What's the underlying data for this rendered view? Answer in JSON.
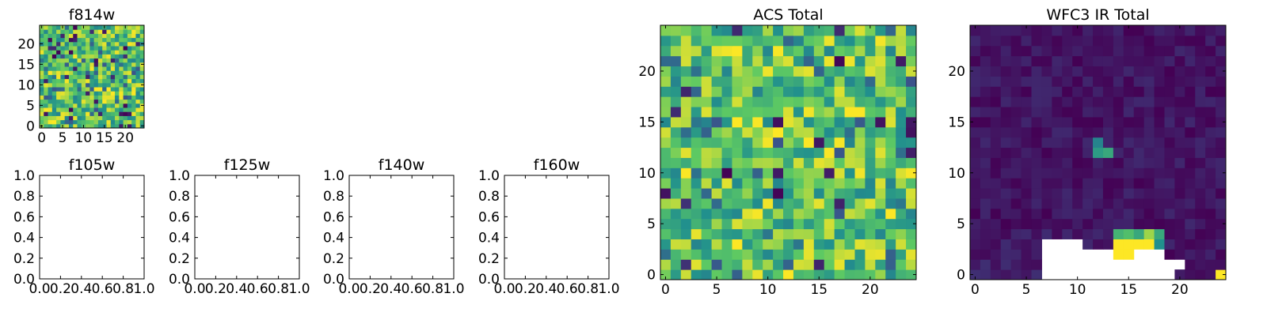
{
  "colormap": [
    "#440154",
    "#3b528b",
    "#21908d",
    "#5dc963",
    "#fde725"
  ],
  "chart_data": [
    {
      "type": "heatmap",
      "title": "f814w",
      "xticks": [
        0,
        5,
        10,
        15,
        20
      ],
      "yticks": [
        0,
        5,
        10,
        15,
        20
      ],
      "xlim": [
        -0.5,
        24.5
      ],
      "ylim": [
        -0.5,
        24.5
      ],
      "grid_size": 25,
      "pattern": "noise"
    },
    {
      "type": "empty",
      "title": "f105w",
      "xticks": [
        "0.0",
        "0.2",
        "0.4",
        "0.6",
        "0.8",
        "1.0"
      ],
      "yticks": [
        "0.0",
        "0.2",
        "0.4",
        "0.6",
        "0.8",
        "1.0"
      ],
      "xlim": [
        0,
        1
      ],
      "ylim": [
        0,
        1
      ]
    },
    {
      "type": "empty",
      "title": "f125w",
      "xticks": [
        "0.0",
        "0.2",
        "0.4",
        "0.6",
        "0.8",
        "1.0"
      ],
      "yticks": [
        "0.0",
        "0.2",
        "0.4",
        "0.6",
        "0.8",
        "1.0"
      ],
      "xlim": [
        0,
        1
      ],
      "ylim": [
        0,
        1
      ]
    },
    {
      "type": "empty",
      "title": "f140w",
      "xticks": [
        "0.0",
        "0.2",
        "0.4",
        "0.6",
        "0.8",
        "1.0"
      ],
      "yticks": [
        "0.0",
        "0.2",
        "0.4",
        "0.6",
        "0.8",
        "1.0"
      ],
      "xlim": [
        0,
        1
      ],
      "ylim": [
        0,
        1
      ]
    },
    {
      "type": "empty",
      "title": "f160w",
      "xticks": [
        "0.0",
        "0.2",
        "0.4",
        "0.6",
        "0.8",
        "1.0"
      ],
      "yticks": [
        "0.0",
        "0.2",
        "0.4",
        "0.6",
        "0.8",
        "1.0"
      ],
      "xlim": [
        0,
        1
      ],
      "ylim": [
        0,
        1
      ]
    },
    {
      "type": "heatmap",
      "title": "ACS Total",
      "xticks": [
        0,
        5,
        10,
        15,
        20
      ],
      "yticks": [
        0,
        5,
        10,
        15,
        20
      ],
      "xlim": [
        -0.5,
        24.5
      ],
      "ylim": [
        -0.5,
        24.5
      ],
      "grid_size": 25,
      "pattern": "noise"
    },
    {
      "type": "heatmap",
      "title": "WFC3 IR Total",
      "xticks": [
        0,
        5,
        10,
        15,
        20
      ],
      "yticks": [
        0,
        5,
        10,
        15,
        20
      ],
      "xlim": [
        -0.5,
        24.5
      ],
      "ylim": [
        -0.5,
        24.5
      ],
      "grid_size": 25,
      "pattern": "mostly-low",
      "bright_cells": [
        {
          "x": 12,
          "y": 12,
          "value": 0.55
        },
        {
          "x": 12,
          "y": 13,
          "value": 0.45
        },
        {
          "x": 13,
          "y": 12,
          "value": 0.6
        },
        {
          "x": 14,
          "y": 3,
          "value": 1.0
        },
        {
          "x": 15,
          "y": 3,
          "value": 1.0
        },
        {
          "x": 16,
          "y": 3,
          "value": 1.0
        },
        {
          "x": 17,
          "y": 3,
          "value": 1.0
        },
        {
          "x": 14,
          "y": 2,
          "value": 1.0
        },
        {
          "x": 15,
          "y": 2,
          "value": 1.0
        },
        {
          "x": 14,
          "y": 4,
          "value": 0.65
        },
        {
          "x": 15,
          "y": 4,
          "value": 0.7
        },
        {
          "x": 16,
          "y": 4,
          "value": 0.6
        },
        {
          "x": 17,
          "y": 4,
          "value": 0.85
        },
        {
          "x": 18,
          "y": 4,
          "value": 0.6
        },
        {
          "x": 18,
          "y": 3,
          "value": 0.5
        },
        {
          "x": 24,
          "y": 0,
          "value": 1.0
        }
      ],
      "masked_cells": [
        [
          7,
          0
        ],
        [
          8,
          0
        ],
        [
          9,
          0
        ],
        [
          10,
          0
        ],
        [
          11,
          0
        ],
        [
          12,
          0
        ],
        [
          13,
          0
        ],
        [
          14,
          0
        ],
        [
          15,
          0
        ],
        [
          16,
          0
        ],
        [
          17,
          0
        ],
        [
          18,
          0
        ],
        [
          19,
          0
        ],
        [
          7,
          1
        ],
        [
          8,
          1
        ],
        [
          9,
          1
        ],
        [
          10,
          1
        ],
        [
          11,
          1
        ],
        [
          12,
          1
        ],
        [
          13,
          1
        ],
        [
          14,
          1
        ],
        [
          15,
          1
        ],
        [
          16,
          1
        ],
        [
          17,
          1
        ],
        [
          18,
          1
        ],
        [
          19,
          1
        ],
        [
          20,
          1
        ],
        [
          7,
          2
        ],
        [
          8,
          2
        ],
        [
          9,
          2
        ],
        [
          10,
          2
        ],
        [
          11,
          2
        ],
        [
          12,
          2
        ],
        [
          13,
          2
        ],
        [
          16,
          2
        ],
        [
          17,
          2
        ],
        [
          18,
          2
        ],
        [
          7,
          3
        ],
        [
          8,
          3
        ],
        [
          9,
          3
        ],
        [
          10,
          3
        ]
      ]
    }
  ]
}
